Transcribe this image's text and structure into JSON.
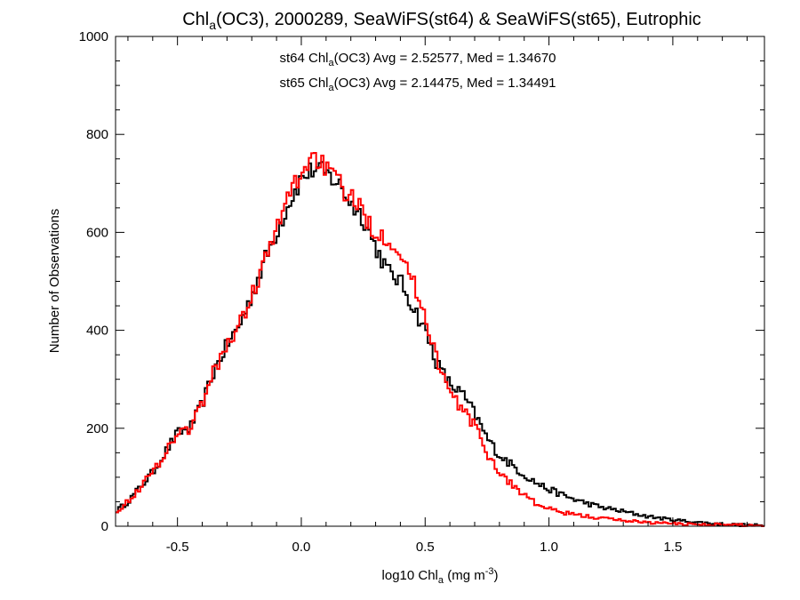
{
  "chart_data": {
    "type": "histogram",
    "title": {
      "pre": "Chl",
      "sub": "a",
      "post": "(OC3), 2000289, SeaWiFS(st64) & SeaWiFS(st65), Eutrophic"
    },
    "xlabel": {
      "pre": "log10 Chl",
      "sub": "a",
      "mid": " (mg m",
      "sup": "-3",
      "post": ")"
    },
    "ylabel": "Number of Observations",
    "xlim": [
      -0.75,
      1.87
    ],
    "ylim": [
      0,
      1000
    ],
    "xticks": [
      -0.5,
      0.0,
      0.5,
      1.0,
      1.5
    ],
    "xtick_labels": [
      "-0.5",
      "0.0",
      "0.5",
      "1.0",
      "1.5"
    ],
    "yticks": [
      0,
      200,
      400,
      600,
      800,
      1000
    ],
    "ytick_labels": [
      "0",
      "200",
      "400",
      "600",
      "800",
      "1000"
    ],
    "grid": false,
    "legend_placement": "top-center",
    "bin_width": 0.01,
    "series": [
      {
        "name": "st64",
        "color": "#000000",
        "legend": {
          "pre": "st64 Chl",
          "sub": "a",
          "post": "(OC3) Avg = 2.52577, Med = 1.34670"
        },
        "keypoints": [
          [
            -0.75,
            30
          ],
          [
            -0.7,
            50
          ],
          [
            -0.65,
            80
          ],
          [
            -0.6,
            110
          ],
          [
            -0.55,
            150
          ],
          [
            -0.5,
            190
          ],
          [
            -0.45,
            200
          ],
          [
            -0.4,
            250
          ],
          [
            -0.35,
            320
          ],
          [
            -0.3,
            370
          ],
          [
            -0.25,
            410
          ],
          [
            -0.2,
            470
          ],
          [
            -0.15,
            540
          ],
          [
            -0.1,
            600
          ],
          [
            -0.05,
            660
          ],
          [
            0.0,
            710
          ],
          [
            0.05,
            730
          ],
          [
            0.1,
            720
          ],
          [
            0.15,
            700
          ],
          [
            0.2,
            660
          ],
          [
            0.25,
            630
          ],
          [
            0.3,
            570
          ],
          [
            0.35,
            520
          ],
          [
            0.4,
            500
          ],
          [
            0.45,
            450
          ],
          [
            0.5,
            400
          ],
          [
            0.55,
            330
          ],
          [
            0.6,
            290
          ],
          [
            0.65,
            270
          ],
          [
            0.7,
            230
          ],
          [
            0.75,
            180
          ],
          [
            0.8,
            145
          ],
          [
            0.85,
            125
          ],
          [
            0.9,
            105
          ],
          [
            0.95,
            88
          ],
          [
            1.0,
            75
          ],
          [
            1.05,
            65
          ],
          [
            1.1,
            55
          ],
          [
            1.2,
            40
          ],
          [
            1.3,
            30
          ],
          [
            1.4,
            20
          ],
          [
            1.5,
            13
          ],
          [
            1.6,
            8
          ],
          [
            1.7,
            4
          ],
          [
            1.8,
            2
          ],
          [
            1.87,
            1
          ]
        ]
      },
      {
        "name": "st65",
        "color": "#ff0000",
        "legend": {
          "pre": "st65 Chl",
          "sub": "a",
          "post": "(OC3) Avg = 2.14475, Med = 1.34491"
        },
        "keypoints": [
          [
            -0.75,
            30
          ],
          [
            -0.7,
            50
          ],
          [
            -0.65,
            80
          ],
          [
            -0.6,
            110
          ],
          [
            -0.55,
            150
          ],
          [
            -0.5,
            190
          ],
          [
            -0.45,
            200
          ],
          [
            -0.4,
            250
          ],
          [
            -0.35,
            320
          ],
          [
            -0.3,
            370
          ],
          [
            -0.25,
            410
          ],
          [
            -0.2,
            470
          ],
          [
            -0.15,
            540
          ],
          [
            -0.1,
            600
          ],
          [
            -0.05,
            680
          ],
          [
            0.0,
            720
          ],
          [
            0.05,
            760
          ],
          [
            0.1,
            730
          ],
          [
            0.15,
            700
          ],
          [
            0.2,
            670
          ],
          [
            0.25,
            640
          ],
          [
            0.3,
            600
          ],
          [
            0.35,
            590
          ],
          [
            0.4,
            560
          ],
          [
            0.45,
            500
          ],
          [
            0.5,
            430
          ],
          [
            0.55,
            340
          ],
          [
            0.6,
            270
          ],
          [
            0.65,
            240
          ],
          [
            0.7,
            205
          ],
          [
            0.75,
            150
          ],
          [
            0.8,
            110
          ],
          [
            0.85,
            85
          ],
          [
            0.9,
            65
          ],
          [
            0.95,
            45
          ],
          [
            1.0,
            35
          ],
          [
            1.05,
            28
          ],
          [
            1.1,
            24
          ],
          [
            1.2,
            17
          ],
          [
            1.3,
            12
          ],
          [
            1.4,
            8
          ],
          [
            1.5,
            5
          ],
          [
            1.6,
            4
          ],
          [
            1.7,
            3
          ],
          [
            1.8,
            2
          ],
          [
            1.87,
            1
          ]
        ]
      }
    ]
  }
}
